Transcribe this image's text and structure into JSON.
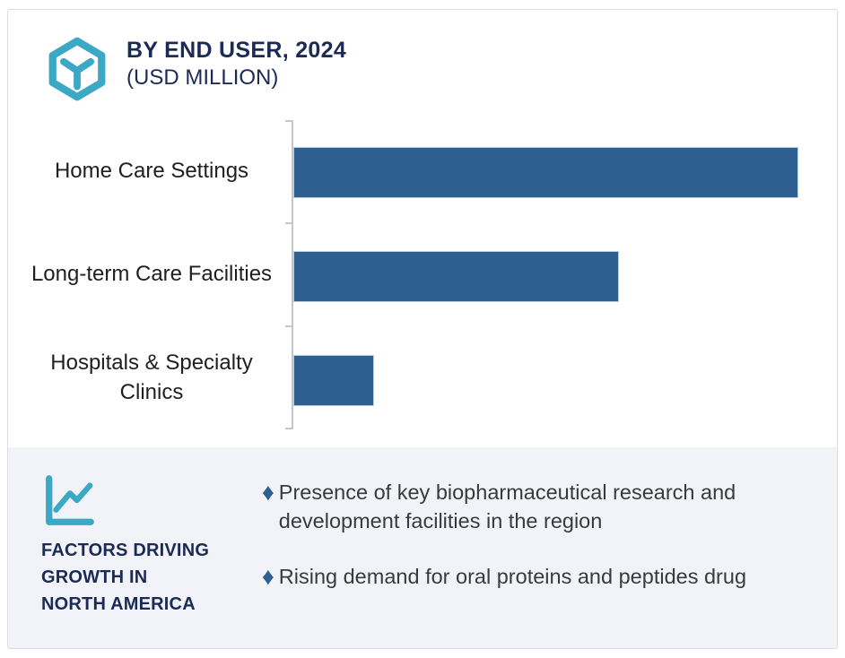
{
  "header": {
    "title": "BY END USER, 2024",
    "subtitle": "(USD MILLION)",
    "logo_icon": "hexagon-cube-icon",
    "accent_color": "#3ba8c6",
    "title_color": "#1c2b55"
  },
  "chart_data": {
    "type": "bar",
    "orientation": "horizontal",
    "title": "BY END USER, 2024 (USD MILLION)",
    "units": "USD Million",
    "categories": [
      "Home Care Settings",
      "Long-term Care Facilities",
      "Hospitals & Specialty Clinics"
    ],
    "values": [
      100,
      64.5,
      16
    ],
    "value_labels_shown": false,
    "xlabel": "",
    "ylabel": "",
    "grid": false,
    "legend": "none",
    "bar_color": "#2d5f91",
    "axis_color": "#c6c6c6"
  },
  "factors": {
    "icon": "line-chart-icon",
    "heading": "FACTORS DRIVING\nGROWTH IN\nNORTH AMERICA",
    "bullet_marker": "♦",
    "bullets": [
      "Presence of key biopharmaceutical research and development facilities in the region",
      "Rising demand for oral proteins and peptides drug"
    ],
    "background_color": "#f1f3f9",
    "marker_color": "#2d5f91"
  }
}
